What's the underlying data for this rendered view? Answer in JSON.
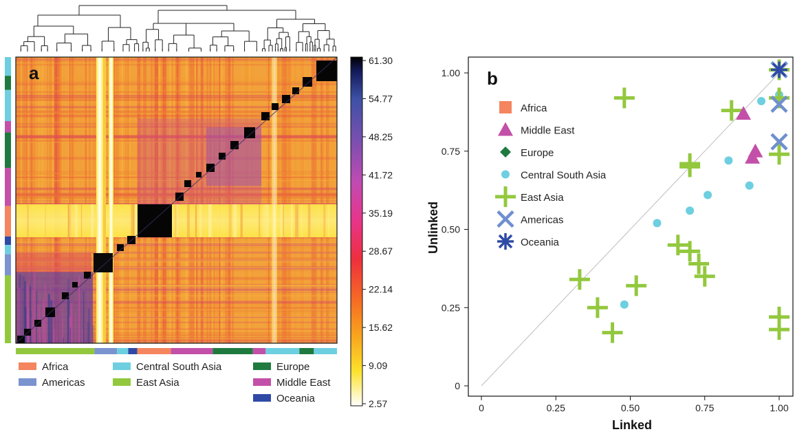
{
  "panels": {
    "a": {
      "label": "a",
      "colorbar_ticks": [
        "61.30",
        "54.77",
        "48.25",
        "41.72",
        "35.19",
        "28.67",
        "22.14",
        "15.62",
        "9.09",
        "2.57"
      ],
      "region_colors": {
        "Africa": "#f4855e",
        "Americas": "#7b93cf",
        "Central South Asia": "#6dcfe0",
        "East Asia": "#93c83e",
        "Europe": "#1f7a3f",
        "Middle East": "#c350a8",
        "Oceania": "#2e4aa6"
      },
      "legend": [
        {
          "label": "Africa",
          "color": "#f4855e"
        },
        {
          "label": "Americas",
          "color": "#7b93cf"
        },
        {
          "label": "Central South Asia",
          "color": "#6dcfe0"
        },
        {
          "label": "East Asia",
          "color": "#93c83e"
        },
        {
          "label": "Europe",
          "color": "#1f7a3f"
        },
        {
          "label": "Middle East",
          "color": "#c350a8"
        },
        {
          "label": "Oceania",
          "color": "#2e4aa6"
        }
      ]
    }
  },
  "chart_data": [
    {
      "type": "heatmap",
      "panel": "a",
      "colorbar": {
        "min": 2.57,
        "max": 61.3,
        "ticks": [
          61.3,
          54.77,
          48.25,
          41.72,
          35.19,
          28.67,
          22.14,
          15.62,
          9.09,
          2.57
        ]
      },
      "row_groups_top_to_bottom": [
        "Central South Asia",
        "Europe",
        "Central South Asia",
        "Middle East",
        "Europe",
        "Middle East",
        "Africa",
        "Oceania",
        "Central South Asia",
        "Americas",
        "East Asia"
      ],
      "col_groups_left_to_right": [
        "East Asia",
        "Americas",
        "Central South Asia",
        "Oceania",
        "Africa",
        "Middle East",
        "Europe",
        "Middle East",
        "Central South Asia",
        "Europe",
        "Central South Asia"
      ]
    },
    {
      "type": "scatter",
      "panel": "b",
      "label": "b",
      "xlabel": "Linked",
      "ylabel": "Unlinked",
      "xlim": [
        0,
        1.0
      ],
      "ylim": [
        0,
        1.0
      ],
      "xticks": [
        "0",
        "0.25",
        "0.50",
        "0.75",
        "1.00"
      ],
      "yticks": [
        "0",
        "0.25",
        "0.50",
        "0.75",
        "1.00"
      ],
      "diagonal_reference_line": true,
      "legend_position": "top-left",
      "series": [
        {
          "name": "Africa",
          "marker": "square",
          "color": "#f4855e",
          "points": []
        },
        {
          "name": "Middle East",
          "marker": "triangle",
          "color": "#c350a8",
          "points": [
            [
              0.88,
              0.87
            ],
            [
              0.92,
              0.75
            ],
            [
              0.91,
              0.73
            ]
          ]
        },
        {
          "name": "Europe",
          "marker": "diamond",
          "color": "#1f7a3f",
          "points": []
        },
        {
          "name": "Central South Asia",
          "marker": "circle",
          "color": "#6dcfe0",
          "points": [
            [
              0.94,
              0.91
            ],
            [
              1.0,
              0.93
            ],
            [
              0.83,
              0.72
            ],
            [
              0.9,
              0.64
            ],
            [
              0.76,
              0.61
            ],
            [
              0.7,
              0.56
            ],
            [
              0.59,
              0.52
            ],
            [
              0.48,
              0.26
            ]
          ]
        },
        {
          "name": "East Asia",
          "marker": "plus",
          "color": "#93c83e",
          "points": [
            [
              0.48,
              0.92
            ],
            [
              0.84,
              0.88
            ],
            [
              1.0,
              0.92
            ],
            [
              1.0,
              0.74
            ],
            [
              0.7,
              0.71
            ],
            [
              0.7,
              0.7
            ],
            [
              0.66,
              0.45
            ],
            [
              0.7,
              0.43
            ],
            [
              0.73,
              0.39
            ],
            [
              0.75,
              0.35
            ],
            [
              0.33,
              0.34
            ],
            [
              0.52,
              0.32
            ],
            [
              0.39,
              0.25
            ],
            [
              0.44,
              0.17
            ],
            [
              1.0,
              0.22
            ],
            [
              1.0,
              0.18
            ],
            [
              1.0,
              1.01
            ]
          ]
        },
        {
          "name": "Americas",
          "marker": "x",
          "color": "#6f8fcf",
          "points": [
            [
              1.0,
              0.9
            ],
            [
              1.0,
              0.78
            ],
            [
              1.0,
              1.01
            ]
          ]
        },
        {
          "name": "Oceania",
          "marker": "asterisk",
          "color": "#2e4aa6",
          "points": [
            [
              1.0,
              1.01
            ]
          ]
        }
      ]
    }
  ]
}
